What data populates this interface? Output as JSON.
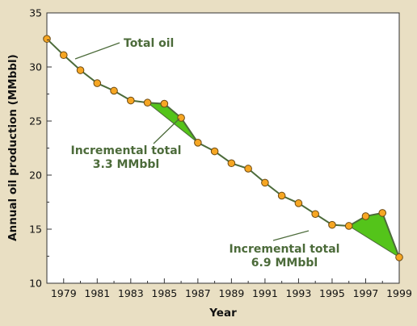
{
  "colors": {
    "background": "#e9dfc3",
    "plot_background": "#ffffff",
    "line": "#4c6b3a",
    "marker_fill": "#f6a623",
    "marker_stroke": "#6b4a14",
    "increment_fill": "#54c41a",
    "annotation_text": "#4c6b3a"
  },
  "chart_data": {
    "type": "line",
    "title": "",
    "xlabel": "Year",
    "ylabel": "Annual oil production (MMbbl)",
    "xlim": [
      1978,
      1999
    ],
    "ylim": [
      10,
      35
    ],
    "x_ticks": [
      1979,
      1981,
      1983,
      1985,
      1987,
      1989,
      1991,
      1993,
      1995,
      1997,
      1999
    ],
    "y_ticks": [
      10,
      15,
      20,
      25,
      30,
      35
    ],
    "grid": false,
    "series": [
      {
        "name": "Total oil",
        "x": [
          1978,
          1979,
          1980,
          1981,
          1982,
          1983,
          1984,
          1985,
          1986,
          1987,
          1988,
          1989,
          1990,
          1991,
          1992,
          1993,
          1994,
          1995,
          1996,
          1997,
          1998,
          1999
        ],
        "y": [
          32.6,
          31.1,
          29.7,
          28.5,
          27.8,
          26.9,
          26.7,
          26.6,
          25.3,
          23.0,
          22.2,
          21.1,
          20.6,
          19.3,
          18.1,
          17.4,
          16.4,
          15.4,
          15.3,
          16.2,
          16.5,
          12.4
        ]
      }
    ],
    "incremental_regions": [
      {
        "label_line1": "Incremental total",
        "label_line2": "3.3 MMbbl",
        "start": [
          1984,
          26.7
        ],
        "end": [
          1987,
          23.0
        ]
      },
      {
        "label_line1": "Incremental total",
        "label_line2": "6.9 MMbbl",
        "start": [
          1996,
          15.3
        ],
        "end": [
          1999,
          12.4
        ]
      }
    ],
    "annotations": [
      {
        "text": "Total oil"
      }
    ]
  }
}
